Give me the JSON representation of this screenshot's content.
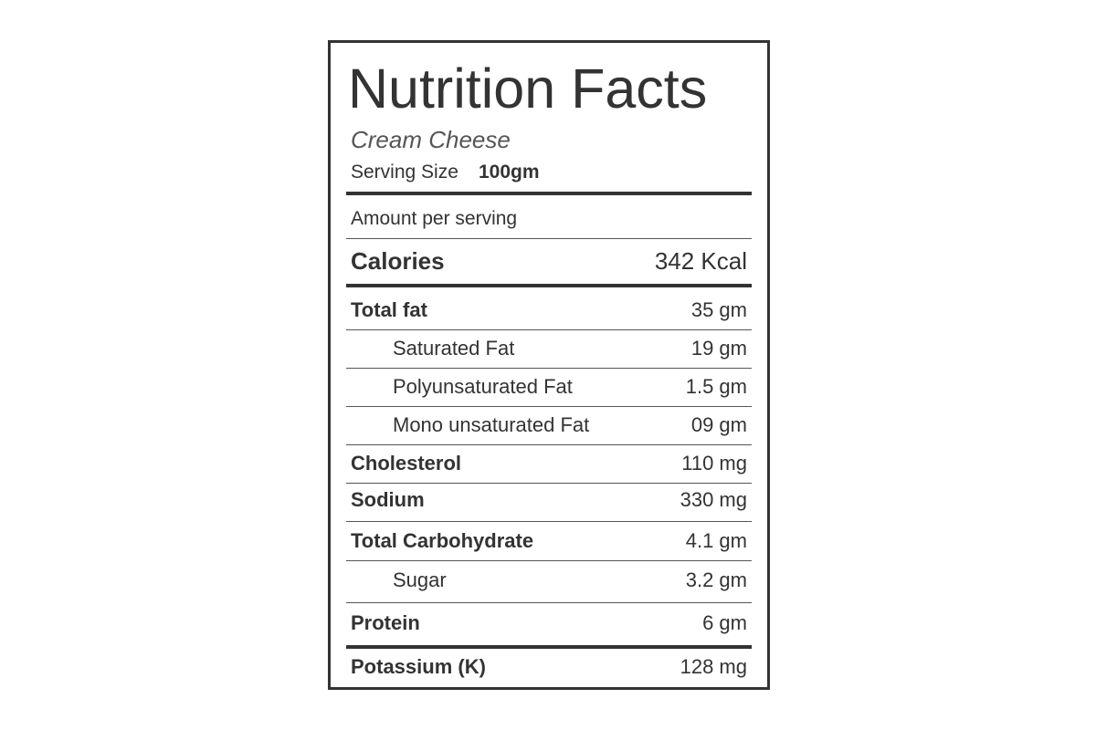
{
  "header": {
    "title": "Nutrition Facts",
    "product": "Cream Cheese",
    "serving_label": "Serving Size",
    "serving_size": "100gm"
  },
  "amount_per_serving": "Amount per serving",
  "calories": {
    "label": "Calories",
    "amount": "342 Kcal"
  },
  "nutrients": [
    {
      "label": "Total fat",
      "amount": "35 gm"
    },
    {
      "label": "Saturated Fat",
      "amount": "19 gm"
    },
    {
      "label": "Polyunsaturated Fat",
      "amount": "1.5 gm"
    },
    {
      "label": "Mono unsaturated Fat",
      "amount": "09 gm"
    },
    {
      "label": "Cholesterol",
      "amount": "110 mg"
    },
    {
      "label": "Sodium",
      "amount": "330 mg"
    },
    {
      "label": "Total Carbohydrate",
      "amount": "4.1 gm"
    },
    {
      "label": "Sugar",
      "amount": "3.2 gm"
    },
    {
      "label": "Protein",
      "amount": "6 gm"
    },
    {
      "label": "Potassium (K)",
      "amount": "128 mg"
    }
  ]
}
